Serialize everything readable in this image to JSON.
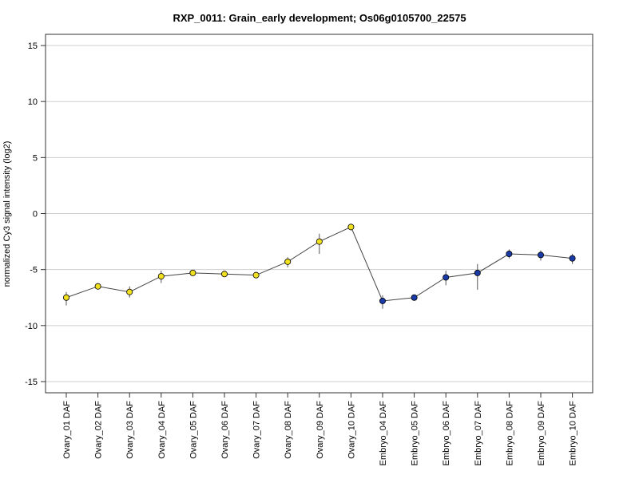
{
  "chart_data": {
    "type": "line",
    "title": "RXP_0011: Grain_early development; Os06g0105700_22575",
    "xlabel": "",
    "ylabel": "normalized Cy3 signal intensity (log2)",
    "ylim": [
      -16,
      16
    ],
    "yticks": [
      -15,
      -10,
      -5,
      0,
      5,
      10,
      15
    ],
    "ytick_labels": [
      "-15",
      "-10",
      "-5",
      "0",
      "5",
      "10",
      "15"
    ],
    "grid": true,
    "legend": "none",
    "categories": [
      "Ovary_01 DAF",
      "Ovary_02 DAF",
      "Ovary_03 DAF",
      "Ovary_04 DAF",
      "Ovary_05 DAF",
      "Ovary_06 DAF",
      "Ovary_07 DAF",
      "Ovary_08 DAF",
      "Ovary_09 DAF",
      "Ovary_10 DAF",
      "Embryo_04 DAF",
      "Embryo_05 DAF",
      "Embryo_06 DAF",
      "Embryo_07 DAF",
      "Embryo_08 DAF",
      "Embryo_09 DAF",
      "Embryo_10 DAF"
    ],
    "series": [
      {
        "values": [
          -7.5,
          -6.5,
          -7.0,
          -5.6,
          -5.3,
          -5.4,
          -5.5,
          -4.3,
          -2.5,
          -1.2,
          -7.8,
          -7.5,
          -5.7,
          -5.3,
          -3.6,
          -3.7,
          -4.0
        ],
        "err_low": [
          -8.2,
          -6.7,
          -7.5,
          -6.2,
          -5.4,
          -5.6,
          -5.6,
          -4.8,
          -3.6,
          -1.5,
          -8.5,
          -7.6,
          -6.4,
          -6.8,
          -4.0,
          -4.2,
          -4.5
        ],
        "err_high": [
          -7.0,
          -6.2,
          -6.5,
          -5.1,
          -5.1,
          -5.2,
          -5.3,
          -3.9,
          -1.8,
          -0.9,
          -7.3,
          -7.3,
          -5.1,
          -4.5,
          -3.2,
          -3.3,
          -3.6
        ],
        "colors": [
          "#f0e020",
          "#f0e020",
          "#f0e020",
          "#f0e020",
          "#f0e020",
          "#f0e020",
          "#f0e020",
          "#f0e020",
          "#f0e020",
          "#f0e020",
          "#1a3aa8",
          "#1a3aa8",
          "#1a3aa8",
          "#1a3aa8",
          "#1a3aa8",
          "#1a3aa8",
          "#1a3aa8"
        ]
      }
    ]
  }
}
